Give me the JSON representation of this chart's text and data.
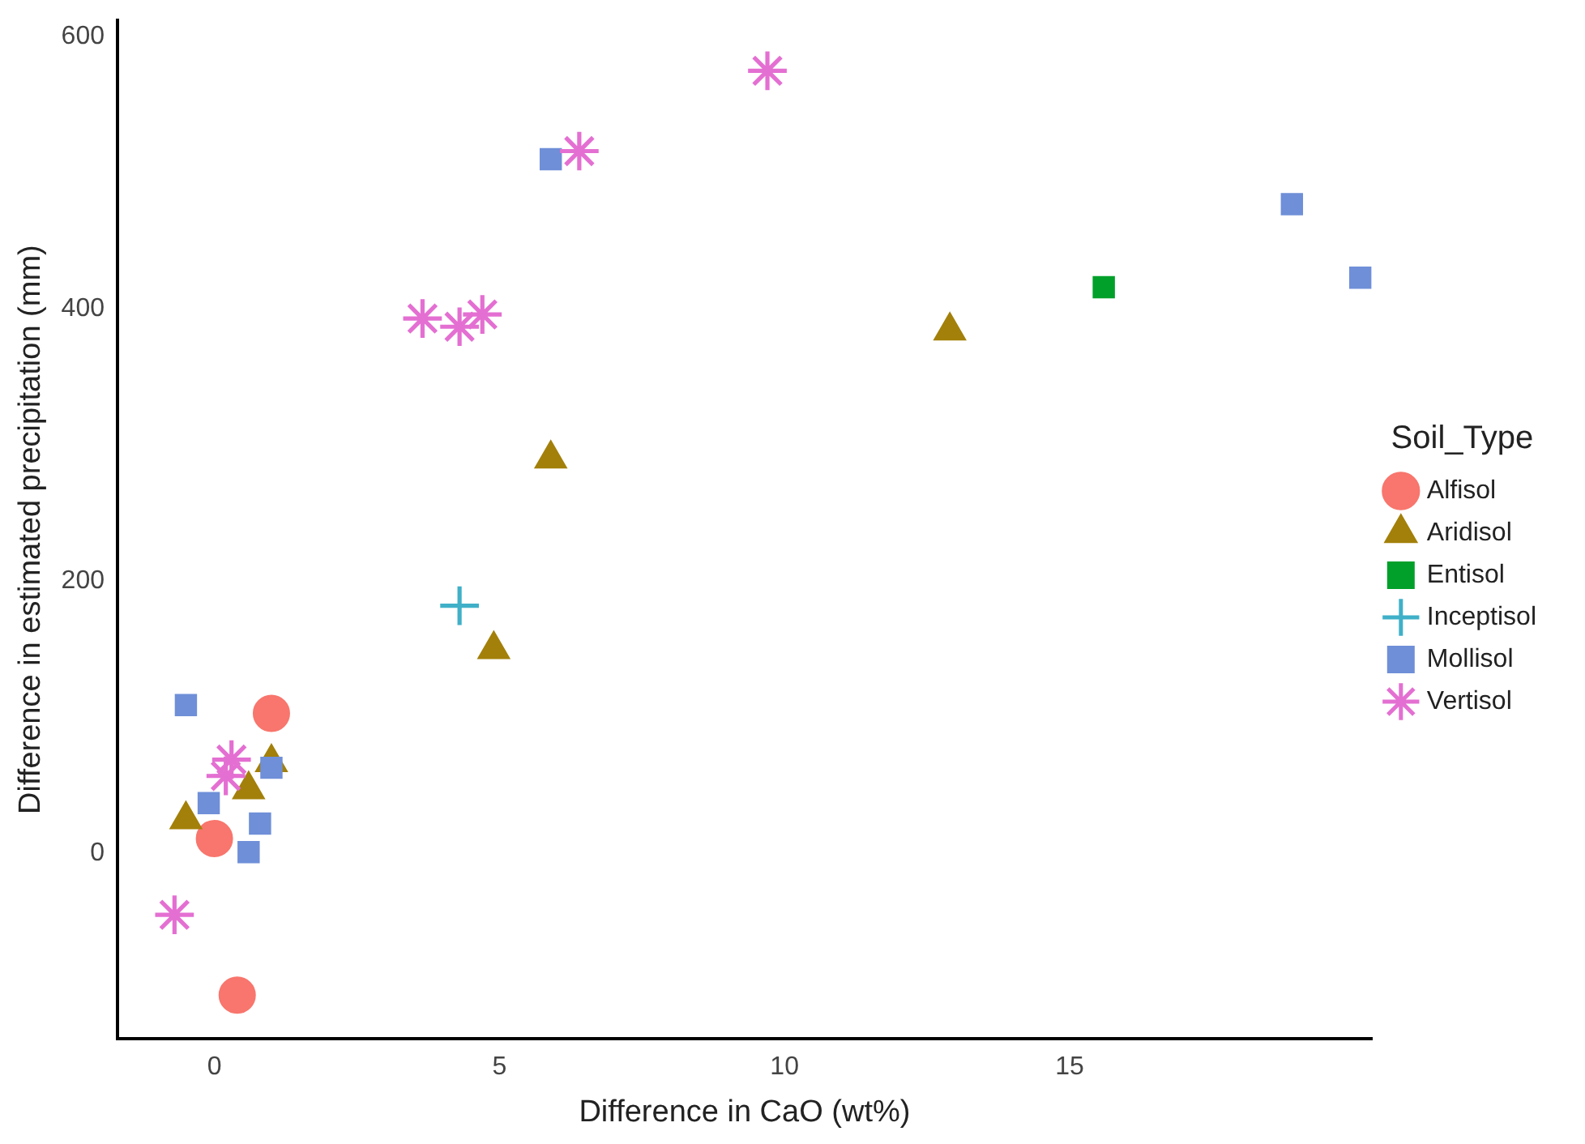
{
  "chart_data": {
    "type": "scatter",
    "xlabel": "Difference in CaO (wt%)",
    "ylabel": "Difference in estimated precipitation (mm)",
    "legend_title": "Soil_Type",
    "legend": "right",
    "grid": false,
    "xlim": [
      -1.7,
      20.3
    ],
    "xticks": [
      0,
      5,
      10,
      15
    ],
    "ylim": [
      -136,
      612
    ],
    "yticks": [
      0,
      200,
      400,
      600
    ],
    "series": [
      {
        "name": "Alfisol",
        "color": "#f8766d",
        "marker": "circle",
        "x": [
          1.0,
          0.0,
          0.4
        ],
        "values": [
          103,
          11,
          -104
        ]
      },
      {
        "name": "Aridisol",
        "color": "#a3800a",
        "marker": "triangle",
        "x": [
          -0.5,
          1.0,
          0.6,
          5.9,
          4.9,
          12.9
        ],
        "values": [
          25,
          67,
          47,
          290,
          150,
          384
        ]
      },
      {
        "name": "Entisol",
        "color": "#00a02a",
        "marker": "square",
        "x": [
          15.6
        ],
        "values": [
          416
        ]
      },
      {
        "name": "Inceptisol",
        "color": "#3fb0c8",
        "marker": "cross",
        "x": [
          4.3
        ],
        "values": [
          182
        ]
      },
      {
        "name": "Mollisol",
        "color": "#6f8fd8",
        "marker": "square",
        "x": [
          5.9,
          18.9,
          20.1,
          -0.5,
          1.0,
          0.8,
          0.6,
          -0.1
        ],
        "values": [
          510,
          477,
          423,
          109,
          63,
          22,
          1,
          37
        ]
      },
      {
        "name": "Vertisol",
        "color": "#e46fd2",
        "marker": "star",
        "x": [
          9.7,
          6.4,
          3.65,
          4.3,
          4.7,
          0.3,
          0.2,
          -0.7
        ],
        "values": [
          575,
          516,
          393,
          387,
          396,
          69,
          57,
          -45
        ]
      }
    ]
  }
}
